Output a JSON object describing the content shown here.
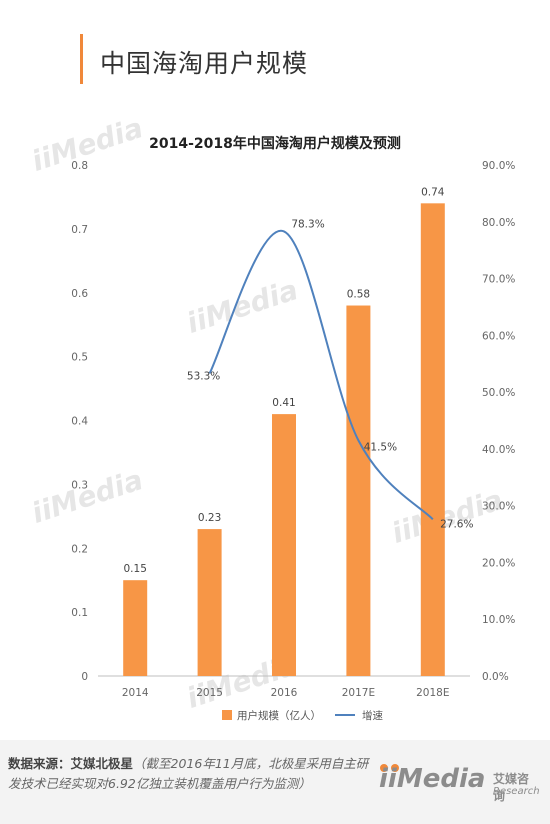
{
  "page": {
    "title": "中国海淘用户规模"
  },
  "chart_data": {
    "type": "bar",
    "title": "2014-2018年中国海淘用户规模及预测",
    "categories": [
      "2014",
      "2015",
      "2016",
      "2017E",
      "2018E"
    ],
    "series": [
      {
        "name": "用户规模（亿人）",
        "type": "bar",
        "axis": "left",
        "values": [
          0.15,
          0.23,
          0.41,
          0.58,
          0.74
        ],
        "labels": [
          "0.15",
          "0.23",
          "0.41",
          "0.58",
          "0.74"
        ],
        "color": "#f79646"
      },
      {
        "name": "增速",
        "type": "line",
        "axis": "right",
        "values": [
          null,
          53.3,
          78.3,
          41.5,
          27.6
        ],
        "labels": [
          "",
          "53.3%",
          "78.3%",
          "41.5%",
          "27.6%"
        ],
        "color": "#4f81bd"
      }
    ],
    "y_left": {
      "ylim": [
        0,
        0.8
      ],
      "ticks": [
        0,
        0.1,
        0.2,
        0.3,
        0.4,
        0.5,
        0.6,
        0.7,
        0.8
      ],
      "tick_labels": [
        "0",
        "0.1",
        "0.2",
        "0.3",
        "0.4",
        "0.5",
        "0.6",
        "0.7",
        "0.8"
      ]
    },
    "y_right": {
      "ylim": [
        0,
        90
      ],
      "ticks": [
        0,
        10,
        20,
        30,
        40,
        50,
        60,
        70,
        80,
        90
      ],
      "tick_labels": [
        "0.0%",
        "10.0%",
        "20.0%",
        "30.0%",
        "40.0%",
        "50.0%",
        "60.0%",
        "70.0%",
        "80.0%",
        "90.0%"
      ]
    },
    "grid": false,
    "legend_position": "bottom"
  },
  "footer": {
    "source_label": "数据来源：艾媒北极星",
    "source_note": "（截至2016年11月底，北极星采用自主研发技术已经实现对6.92亿独立装机覆盖用户行为监测）",
    "brand_logo": "iiMedia",
    "brand_cn": "艾媒咨询",
    "brand_en": "Research"
  },
  "watermark": {
    "text": "iiMedia"
  },
  "colors": {
    "accent": "#f0883a",
    "bar": "#f79646",
    "line": "#4f81bd",
    "text": "#333333"
  }
}
